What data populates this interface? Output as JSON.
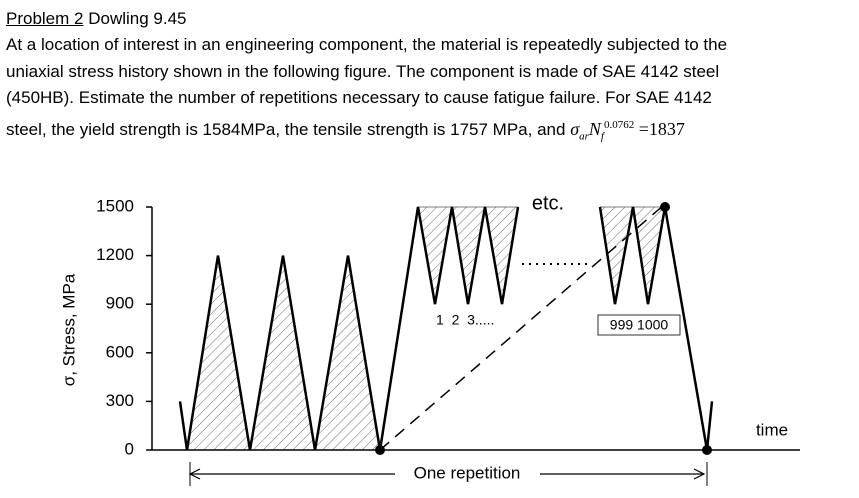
{
  "problem": {
    "label": "Problem 2",
    "source": "Dowling 9.45",
    "lines": [
      "At a location of interest in an engineering component, the material is repeatedly subjected to the",
      "uniaxial stress history shown in the following figure. The component is made of SAE 4142 steel",
      "(450HB). Estimate the number of repetitions necessary to cause fatigue failure. For SAE 4142",
      "steel, the yield strength is 1584MPa, the tensile strength is 1757 MPa, and"
    ],
    "formula": {
      "sigma": "σ",
      "sigma_sub": "ar",
      "n": "N",
      "n_sub": "f",
      "exponent": "0.0762",
      "rhs": "=1837"
    }
  },
  "figure": {
    "y_label": "σ, Stress, MPa",
    "x_label": "time",
    "span_label": "One repetition",
    "etc_label": "etc.",
    "count_start_label": "1  2  3.....",
    "count_end_label": "999 1000",
    "ylim": [
      0,
      1500
    ],
    "yticks": [
      0,
      300,
      600,
      900,
      1200,
      1500
    ],
    "stress_part1": [
      300,
      0,
      1200,
      0,
      1200,
      0,
      1200,
      0,
      1500,
      900,
      1500,
      900,
      1500,
      900,
      1500
    ],
    "stress_part2": [
      1500,
      900,
      1500,
      900,
      1500,
      0,
      300
    ]
  }
}
